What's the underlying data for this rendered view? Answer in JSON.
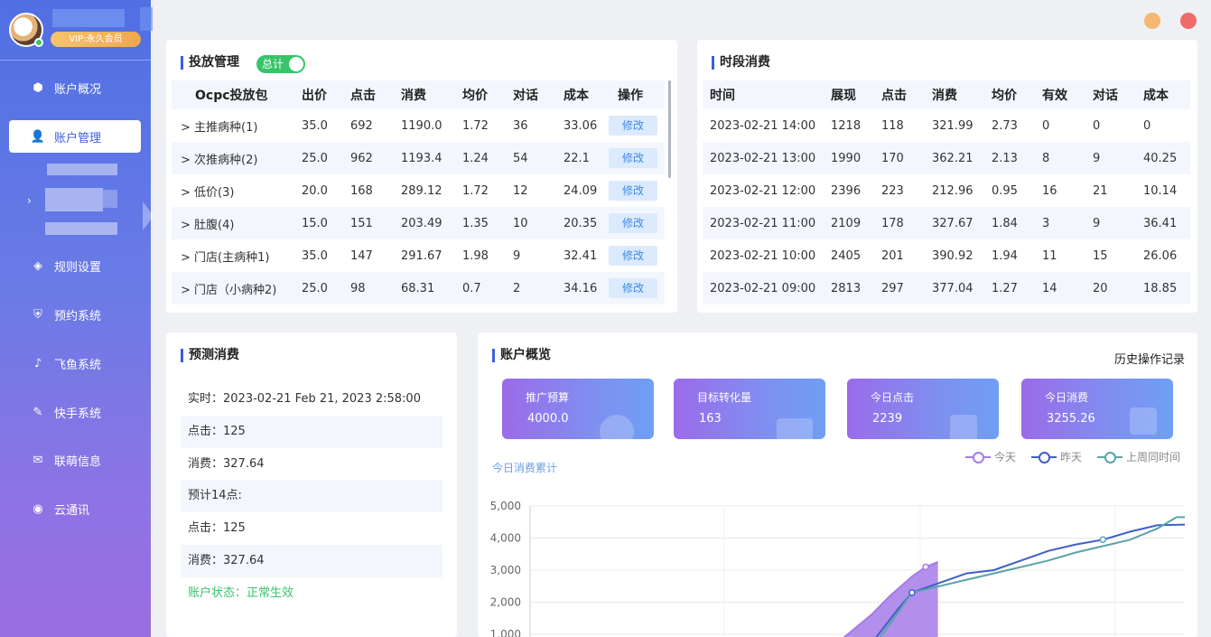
{
  "sidebar": {
    "vip_label": "VIP:永久会员",
    "items": [
      {
        "label": "账户概况",
        "icon": "cube-icon"
      },
      {
        "label": "账户管理",
        "icon": "user-icon"
      },
      {
        "label": "规则设置",
        "icon": "layers-icon"
      },
      {
        "label": "预约系统",
        "icon": "shield-icon"
      },
      {
        "label": "飞鱼系统",
        "icon": "tiktok-icon"
      },
      {
        "label": "快手系统",
        "icon": "kuaishou-icon"
      },
      {
        "label": "联萌信息",
        "icon": "message-icon"
      },
      {
        "label": "云通讯",
        "icon": "cloud-icon"
      }
    ]
  },
  "window": {
    "minimize_color": "#f5b870",
    "close_color": "#f06a6a"
  },
  "delivery": {
    "title": "投放管理",
    "toggle_label": "总计",
    "columns": [
      "Ocpc投放包",
      "出价",
      "点击",
      "消费",
      "均价",
      "对话",
      "成本",
      "操作"
    ],
    "rows": [
      {
        "name": "> 主推病种(1)",
        "bid": "35.0",
        "clicks": "692",
        "cost": "1190.0",
        "avg": "1.72",
        "chats": "36",
        "unit": "33.06",
        "action": "修改"
      },
      {
        "name": "> 次推病种(2)",
        "bid": "25.0",
        "clicks": "962",
        "cost": "1193.4",
        "avg": "1.24",
        "chats": "54",
        "unit": "22.1",
        "action": "修改"
      },
      {
        "name": "> 低价(3)",
        "bid": "20.0",
        "clicks": "168",
        "cost": "289.12",
        "avg": "1.72",
        "chats": "12",
        "unit": "24.09",
        "action": "修改"
      },
      {
        "name": "> 肚腹(4)",
        "bid": "15.0",
        "clicks": "151",
        "cost": "203.49",
        "avg": "1.35",
        "chats": "10",
        "unit": "20.35",
        "action": "修改"
      },
      {
        "name": "> 门店(主病种1)",
        "bid": "35.0",
        "clicks": "147",
        "cost": "291.67",
        "avg": "1.98",
        "chats": "9",
        "unit": "32.41",
        "action": "修改"
      },
      {
        "name": "> 门店（小病种2)",
        "bid": "25.0",
        "clicks": "98",
        "cost": "68.31",
        "avg": "0.7",
        "chats": "2",
        "unit": "34.16",
        "action": "修改"
      }
    ]
  },
  "period": {
    "title": "时段消费",
    "columns": [
      "时间",
      "展现",
      "点击",
      "消费",
      "均价",
      "有效",
      "对话",
      "成本"
    ],
    "rows": [
      [
        "2023-02-21 14:00",
        "1218",
        "118",
        "321.99",
        "2.73",
        "0",
        "0",
        "0"
      ],
      [
        "2023-02-21 13:00",
        "1990",
        "170",
        "362.21",
        "2.13",
        "8",
        "9",
        "40.25"
      ],
      [
        "2023-02-21 12:00",
        "2396",
        "223",
        "212.96",
        "0.95",
        "16",
        "21",
        "10.14"
      ],
      [
        "2023-02-21 11:00",
        "2109",
        "178",
        "327.67",
        "1.84",
        "3",
        "9",
        "36.41"
      ],
      [
        "2023-02-21 10:00",
        "2405",
        "201",
        "390.92",
        "1.94",
        "11",
        "15",
        "26.06"
      ],
      [
        "2023-02-21 09:00",
        "2813",
        "297",
        "377.04",
        "1.27",
        "14",
        "20",
        "18.85"
      ]
    ]
  },
  "forecast": {
    "title": "预测消费",
    "realtime": "实时：2023-02-21 Feb 21, 2023 2:58:00",
    "clicks": "点击：125",
    "cost": "消费：327.64",
    "predict_label": "预计14点:",
    "predict_clicks": "点击：125",
    "predict_cost": "消费：327.64",
    "status": "账户状态：正常生效"
  },
  "overview": {
    "title": "账户概览",
    "history_link": "历史操作记录",
    "stats": [
      {
        "label": "推广预算",
        "value": "4000.0",
        "icon": "yuan-icon"
      },
      {
        "label": "目标转化量",
        "value": "163",
        "icon": "card-icon"
      },
      {
        "label": "今日点击",
        "value": "2239",
        "icon": "pointer-icon"
      },
      {
        "label": "今日消费",
        "value": "3255.26",
        "icon": "grid-icon"
      }
    ],
    "chart_subtitle": "今日消费累计",
    "legend": [
      {
        "name": "今天",
        "color": "#a57be8"
      },
      {
        "name": "昨天",
        "color": "#3e5fc8"
      },
      {
        "name": "上周同时间",
        "color": "#5aa3a8"
      }
    ]
  },
  "chart_data": {
    "type": "line",
    "title": "今日消费累计",
    "y_ticks": [
      "5,000",
      "4,000",
      "3,000",
      "2,000",
      "1,000"
    ],
    "ylim": [
      0,
      5000
    ],
    "x_hours": [
      0,
      24
    ],
    "series": [
      {
        "name": "今天",
        "color": "#a57be8",
        "area": true,
        "points": [
          [
            9.7,
            0
          ],
          [
            10.5,
            300
          ],
          [
            11.5,
            900
          ],
          [
            12.5,
            1600
          ],
          [
            13.2,
            2200
          ],
          [
            14.0,
            2800
          ],
          [
            14.5,
            3100
          ],
          [
            14.95,
            3255
          ]
        ]
      },
      {
        "name": "昨天",
        "color": "#3e5fc8",
        "points": [
          [
            11.5,
            0
          ],
          [
            12.5,
            700
          ],
          [
            13.5,
            1800
          ],
          [
            14.0,
            2300
          ],
          [
            15,
            2600
          ],
          [
            16,
            2900
          ],
          [
            17,
            3000
          ],
          [
            18,
            3300
          ],
          [
            19,
            3600
          ],
          [
            20,
            3800
          ],
          [
            21,
            3950
          ],
          [
            22,
            4200
          ],
          [
            23,
            4400
          ],
          [
            24,
            4420
          ]
        ]
      },
      {
        "name": "上周同时间",
        "color": "#5aa3a8",
        "points": [
          [
            12.0,
            0
          ],
          [
            13.0,
            1100
          ],
          [
            14.0,
            2300
          ],
          [
            15,
            2500
          ],
          [
            16,
            2700
          ],
          [
            17,
            2900
          ],
          [
            18,
            3100
          ],
          [
            19,
            3300
          ],
          [
            20,
            3550
          ],
          [
            21,
            3750
          ],
          [
            22,
            3950
          ],
          [
            23,
            4300
          ],
          [
            23.7,
            4650
          ],
          [
            24,
            4650
          ]
        ]
      }
    ]
  }
}
